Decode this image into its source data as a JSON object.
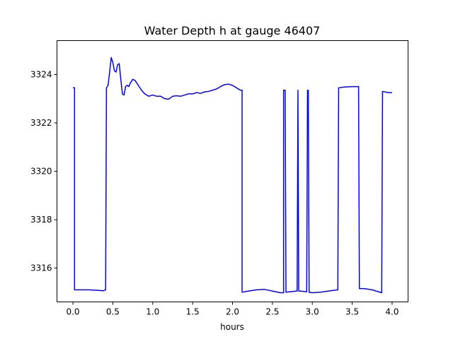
{
  "chart_data": {
    "type": "line",
    "title": "Water Depth h at gauge 46407",
    "xlabel": "hours",
    "ylabel": "",
    "xlim": [
      -0.2,
      4.2
    ],
    "ylim": [
      3314.6,
      3325.4
    ],
    "xticks": [
      0.0,
      0.5,
      1.0,
      1.5,
      2.0,
      2.5,
      3.0,
      3.5,
      4.0
    ],
    "xtick_labels": [
      "0.0",
      "0.5",
      "1.0",
      "1.5",
      "2.0",
      "2.5",
      "3.0",
      "3.5",
      "4.0"
    ],
    "yticks": [
      3316,
      3318,
      3320,
      3322,
      3324
    ],
    "ytick_labels": [
      "3316",
      "3318",
      "3320",
      "3322",
      "3324"
    ],
    "grid": false,
    "line_color": "#0000ff",
    "series": [
      {
        "x": [
          0.0,
          0.02,
          0.02,
          0.2,
          0.3,
          0.38,
          0.41,
          0.42,
          0.44,
          0.46,
          0.48,
          0.5,
          0.52,
          0.54,
          0.56,
          0.58,
          0.6,
          0.62,
          0.64,
          0.66,
          0.68,
          0.7,
          0.72,
          0.75,
          0.78,
          0.82,
          0.86,
          0.9,
          0.95,
          1.0,
          1.05,
          1.1,
          1.15,
          1.2,
          1.25,
          1.3,
          1.35,
          1.4,
          1.45,
          1.5,
          1.55,
          1.6,
          1.65,
          1.7,
          1.75,
          1.8,
          1.85,
          1.9,
          1.95,
          2.0,
          2.05,
          2.1,
          2.12,
          2.12,
          2.2,
          2.3,
          2.4,
          2.5,
          2.6,
          2.64,
          2.64,
          2.65,
          2.66,
          2.67,
          2.8,
          2.81,
          2.82,
          2.82,
          2.83,
          2.85,
          2.93,
          2.94,
          2.95,
          2.96,
          3.0,
          3.1,
          3.2,
          3.32,
          3.33,
          3.4,
          3.5,
          3.58,
          3.59,
          3.65,
          3.75,
          3.87,
          3.88,
          3.95,
          4.0
        ],
        "y": [
          3323.45,
          3323.45,
          3315.1,
          3315.1,
          3315.08,
          3315.06,
          3315.1,
          3323.45,
          3323.55,
          3324.1,
          3324.7,
          3324.5,
          3324.15,
          3324.1,
          3324.4,
          3324.45,
          3323.8,
          3323.2,
          3323.15,
          3323.5,
          3323.55,
          3323.5,
          3323.65,
          3323.8,
          3323.75,
          3323.55,
          3323.35,
          3323.2,
          3323.1,
          3323.15,
          3323.1,
          3323.1,
          3323.0,
          3322.98,
          3323.1,
          3323.12,
          3323.1,
          3323.15,
          3323.2,
          3323.2,
          3323.25,
          3323.22,
          3323.28,
          3323.3,
          3323.35,
          3323.4,
          3323.5,
          3323.58,
          3323.6,
          3323.55,
          3323.45,
          3323.35,
          3323.35,
          3315.0,
          3315.05,
          3315.1,
          3315.12,
          3315.05,
          3314.98,
          3314.98,
          3323.35,
          3323.35,
          3323.35,
          3315.0,
          3315.05,
          3315.05,
          3323.35,
          3323.35,
          3315.05,
          3315.05,
          3315.02,
          3323.35,
          3323.35,
          3315.0,
          3314.98,
          3315.0,
          3315.05,
          3315.1,
          3323.45,
          3323.48,
          3323.5,
          3323.5,
          3315.15,
          3315.15,
          3315.1,
          3314.98,
          3323.3,
          3323.25,
          3323.25
        ]
      }
    ]
  }
}
